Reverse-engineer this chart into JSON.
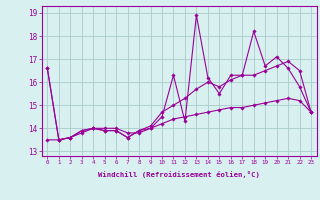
{
  "xlabel": "Windchill (Refroidissement éolien,°C)",
  "x_values": [
    0,
    1,
    2,
    3,
    4,
    5,
    6,
    7,
    8,
    9,
    10,
    11,
    12,
    13,
    14,
    15,
    16,
    17,
    18,
    19,
    20,
    21,
    22,
    23
  ],
  "line1": [
    16.6,
    13.5,
    13.6,
    13.9,
    14.0,
    13.9,
    13.9,
    13.6,
    13.9,
    14.0,
    14.5,
    16.3,
    14.3,
    18.9,
    16.2,
    15.5,
    16.3,
    16.3,
    18.2,
    16.7,
    17.1,
    16.6,
    15.8,
    14.7
  ],
  "line2": [
    16.6,
    13.5,
    13.6,
    13.9,
    14.0,
    13.9,
    13.9,
    13.6,
    13.9,
    14.1,
    14.7,
    15.0,
    15.3,
    15.7,
    16.0,
    15.8,
    16.1,
    16.3,
    16.3,
    16.5,
    16.7,
    16.9,
    16.5,
    14.7
  ],
  "line3": [
    13.5,
    13.5,
    13.6,
    13.8,
    14.0,
    14.0,
    14.0,
    13.8,
    13.8,
    14.0,
    14.2,
    14.4,
    14.5,
    14.6,
    14.7,
    14.8,
    14.9,
    14.9,
    15.0,
    15.1,
    15.2,
    15.3,
    15.2,
    14.7
  ],
  "line_color": "#990099",
  "bg_color": "#d9f0f0",
  "grid_color": "#aacccc",
  "ylim": [
    12.8,
    19.3
  ],
  "yticks": [
    13,
    14,
    15,
    16,
    17,
    18,
    19
  ],
  "marker": "D",
  "markersize": 1.8,
  "linewidth": 0.8
}
